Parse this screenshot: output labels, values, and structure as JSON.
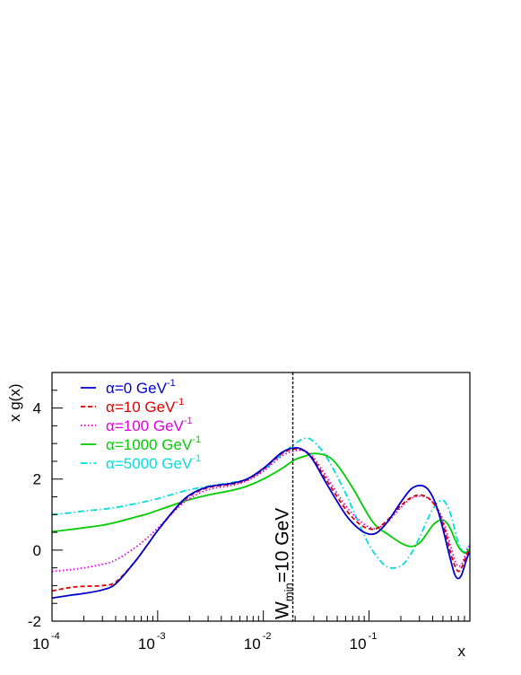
{
  "chart_data": {
    "type": "line",
    "title": "",
    "xlabel": "x",
    "ylabel": "x g(x)",
    "xscale": "log",
    "xlim": [
      0.0001,
      0.9
    ],
    "ylim": [
      -2,
      5
    ],
    "x_ticks": [
      {
        "base": "10",
        "exp": "-4",
        "value": 0.0001
      },
      {
        "base": "10",
        "exp": "-3",
        "value": 0.001
      },
      {
        "base": "10",
        "exp": "-2",
        "value": 0.01
      },
      {
        "base": "10",
        "exp": "-1",
        "value": 0.1
      }
    ],
    "y_ticks": [
      {
        "label": "-2",
        "value": -2
      },
      {
        "label": "0",
        "value": 0
      },
      {
        "label": "2",
        "value": 2
      },
      {
        "label": "4",
        "value": 4
      }
    ],
    "grid": false,
    "legend_position": "top-left",
    "annotation": {
      "main": "W",
      "sub": "min",
      "rest": "=10 GeV",
      "x": 0.019
    },
    "series": [
      {
        "name": "α=0 GeV",
        "name_sup": "-1",
        "color": "#0000cc",
        "dash": "solid",
        "x": [
          0.0001,
          0.00015,
          0.0002,
          0.0003,
          0.0004,
          0.0006,
          0.0008,
          0.001,
          0.0015,
          0.002,
          0.003,
          0.005,
          0.007,
          0.01,
          0.015,
          0.02,
          0.025,
          0.03,
          0.04,
          0.06,
          0.08,
          0.1,
          0.12,
          0.15,
          0.2,
          0.25,
          0.3,
          0.35,
          0.4,
          0.45,
          0.5,
          0.55,
          0.6,
          0.65,
          0.7,
          0.75,
          0.8,
          0.85,
          0.9
        ],
        "y": [
          -1.35,
          -1.27,
          -1.22,
          -1.12,
          -0.95,
          -0.35,
          0.15,
          0.55,
          1.2,
          1.55,
          1.78,
          1.88,
          2.0,
          2.3,
          2.75,
          2.88,
          2.78,
          2.5,
          1.85,
          1.0,
          0.6,
          0.45,
          0.5,
          0.8,
          1.35,
          1.72,
          1.82,
          1.75,
          1.5,
          1.1,
          0.6,
          0.1,
          -0.35,
          -0.7,
          -0.8,
          -0.7,
          -0.45,
          -0.2,
          -0.05
        ]
      },
      {
        "name": "α=10 GeV",
        "name_sup": "-1",
        "color": "#dd0000",
        "dash": "5,3",
        "x": [
          0.0001,
          0.00015,
          0.0002,
          0.0003,
          0.0004,
          0.0006,
          0.0008,
          0.001,
          0.0015,
          0.002,
          0.003,
          0.005,
          0.007,
          0.01,
          0.015,
          0.02,
          0.025,
          0.03,
          0.04,
          0.06,
          0.08,
          0.1,
          0.12,
          0.15,
          0.2,
          0.25,
          0.3,
          0.35,
          0.4,
          0.45,
          0.5,
          0.55,
          0.6,
          0.65,
          0.7,
          0.75,
          0.8,
          0.85,
          0.9
        ],
        "y": [
          -1.15,
          -1.05,
          -1.02,
          -1.0,
          -0.9,
          -0.35,
          0.15,
          0.55,
          1.18,
          1.52,
          1.76,
          1.86,
          1.98,
          2.28,
          2.72,
          2.85,
          2.78,
          2.55,
          1.95,
          1.15,
          0.75,
          0.6,
          0.62,
          0.85,
          1.25,
          1.48,
          1.55,
          1.5,
          1.35,
          1.1,
          0.75,
          0.3,
          -0.15,
          -0.45,
          -0.6,
          -0.5,
          -0.3,
          -0.1,
          0.0
        ]
      },
      {
        "name": "α=100 GeV",
        "name_sup": "-1",
        "color": "#dd00dd",
        "dash": "1.5,2.5",
        "x": [
          0.0001,
          0.00015,
          0.0002,
          0.0003,
          0.0004,
          0.0006,
          0.0008,
          0.001,
          0.0015,
          0.002,
          0.003,
          0.005,
          0.007,
          0.01,
          0.015,
          0.02,
          0.025,
          0.03,
          0.04,
          0.06,
          0.08,
          0.1,
          0.12,
          0.15,
          0.2,
          0.25,
          0.3,
          0.35,
          0.4,
          0.45,
          0.5,
          0.55,
          0.6,
          0.65,
          0.7,
          0.75,
          0.8,
          0.85,
          0.9
        ],
        "y": [
          -0.6,
          -0.55,
          -0.5,
          -0.4,
          -0.28,
          0.05,
          0.35,
          0.62,
          1.15,
          1.45,
          1.7,
          1.82,
          1.95,
          2.22,
          2.65,
          2.8,
          2.78,
          2.6,
          2.05,
          1.25,
          0.85,
          0.65,
          0.62,
          0.8,
          1.2,
          1.45,
          1.52,
          1.48,
          1.35,
          1.15,
          0.85,
          0.45,
          0.05,
          -0.3,
          -0.45,
          -0.4,
          -0.2,
          0.0,
          0.15
        ]
      },
      {
        "name": "α=1000 GeV",
        "name_sup": "-1",
        "color": "#00cc00",
        "dash": "solid",
        "x": [
          0.0001,
          0.00015,
          0.0002,
          0.0003,
          0.0004,
          0.0006,
          0.0008,
          0.001,
          0.0015,
          0.002,
          0.003,
          0.005,
          0.007,
          0.01,
          0.015,
          0.02,
          0.025,
          0.03,
          0.04,
          0.05,
          0.07,
          0.1,
          0.12,
          0.15,
          0.2,
          0.25,
          0.3,
          0.35,
          0.4,
          0.45,
          0.5,
          0.55,
          0.6,
          0.65,
          0.7,
          0.75,
          0.8,
          0.85,
          0.9
        ],
        "y": [
          0.52,
          0.58,
          0.63,
          0.7,
          0.78,
          0.92,
          1.02,
          1.12,
          1.3,
          1.42,
          1.55,
          1.68,
          1.8,
          2.0,
          2.3,
          2.55,
          2.65,
          2.72,
          2.65,
          2.4,
          1.75,
          0.95,
          0.65,
          0.45,
          0.2,
          0.1,
          0.2,
          0.45,
          0.7,
          0.82,
          0.85,
          0.75,
          0.55,
          0.3,
          0.1,
          -0.02,
          -0.08,
          -0.05,
          0.05
        ]
      },
      {
        "name": "α=5000 GeV",
        "name_sup": "-1",
        "color": "#00dddd",
        "dash": "7,3,1.5,3",
        "x": [
          0.0001,
          0.00015,
          0.0002,
          0.0003,
          0.0004,
          0.0006,
          0.0008,
          0.001,
          0.0015,
          0.002,
          0.003,
          0.005,
          0.007,
          0.01,
          0.015,
          0.02,
          0.025,
          0.03,
          0.04,
          0.06,
          0.08,
          0.1,
          0.12,
          0.15,
          0.2,
          0.25,
          0.3,
          0.35,
          0.4,
          0.45,
          0.5,
          0.55,
          0.6,
          0.65,
          0.7,
          0.75,
          0.8,
          0.85,
          0.9
        ],
        "y": [
          1.0,
          1.05,
          1.1,
          1.15,
          1.2,
          1.3,
          1.38,
          1.45,
          1.6,
          1.7,
          1.8,
          1.9,
          2.0,
          2.25,
          2.7,
          3.0,
          3.15,
          3.05,
          2.6,
          1.6,
          0.75,
          0.15,
          -0.2,
          -0.48,
          -0.45,
          -0.1,
          0.35,
          0.8,
          1.15,
          1.35,
          1.4,
          1.25,
          0.95,
          0.55,
          0.2,
          0.0,
          -0.05,
          0.05,
          0.15
        ]
      }
    ]
  }
}
